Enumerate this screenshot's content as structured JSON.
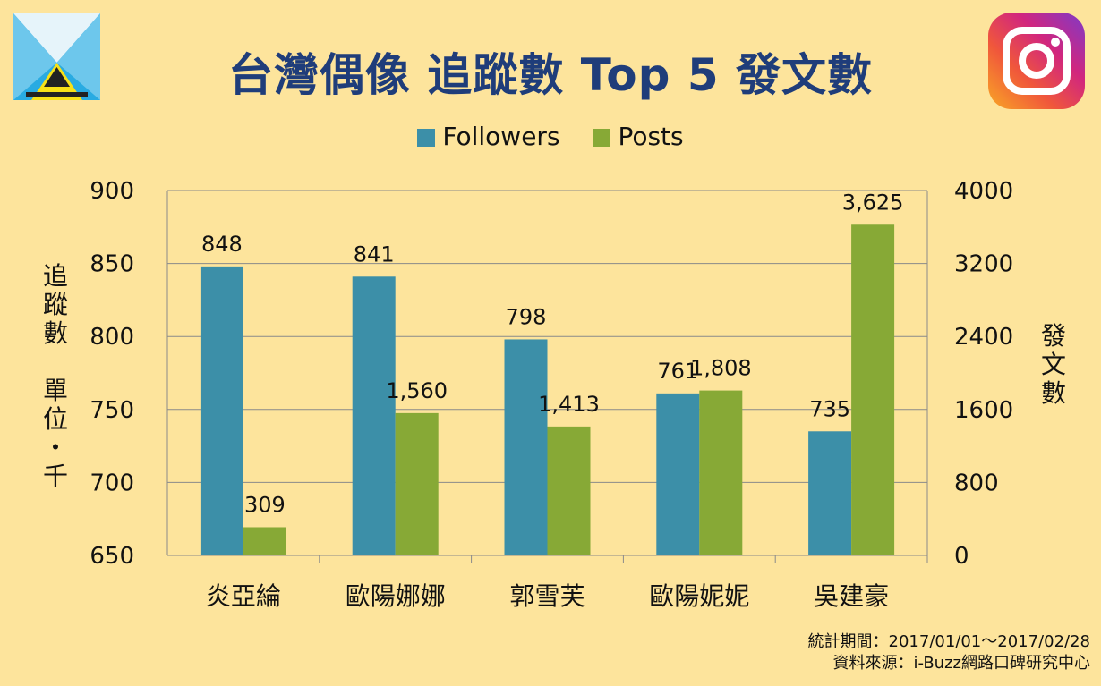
{
  "title": "台灣偶像 追蹤數 Top 5 發文數",
  "source_lines": [
    "統計期間：2017/01/01～2017/02/28",
    "資料來源：i-Buzz網路口碑研究中心"
  ],
  "colors": {
    "followers": "#3C8FA8",
    "posts": "#87A936",
    "background": "#FDE49C",
    "title": "#1F3D7A"
  },
  "icons": {
    "left_logo": "ibuzz-logo-icon",
    "right_logo": "instagram-icon"
  },
  "chart_data": {
    "type": "bar",
    "title": "台灣偶像 追蹤數 Top 5 發文數",
    "categories": [
      "炎亞綸",
      "歐陽娜娜",
      "郭雪芙",
      "歐陽妮妮",
      "吳建豪"
    ],
    "series": [
      {
        "name": "Followers",
        "axis": "left",
        "values": [
          848,
          841,
          798,
          761,
          735
        ],
        "labels": [
          "848",
          "841",
          "798",
          "761",
          "735"
        ]
      },
      {
        "name": "Posts",
        "axis": "right",
        "values": [
          309,
          1560,
          1413,
          1808,
          3625
        ],
        "labels": [
          "309",
          "1,560",
          "1,413",
          "1,808",
          "3,625"
        ]
      }
    ],
    "ylabel_left": "追蹤數　單位・千",
    "ylabel_right": "發文數",
    "ylim_left": [
      650,
      900
    ],
    "yticks_left": [
      650,
      700,
      750,
      800,
      850,
      900
    ],
    "ylim_right": [
      0,
      4000
    ],
    "yticks_right": [
      0,
      800,
      1600,
      2400,
      3200,
      4000
    ],
    "grid": true,
    "legend": "top-center"
  }
}
